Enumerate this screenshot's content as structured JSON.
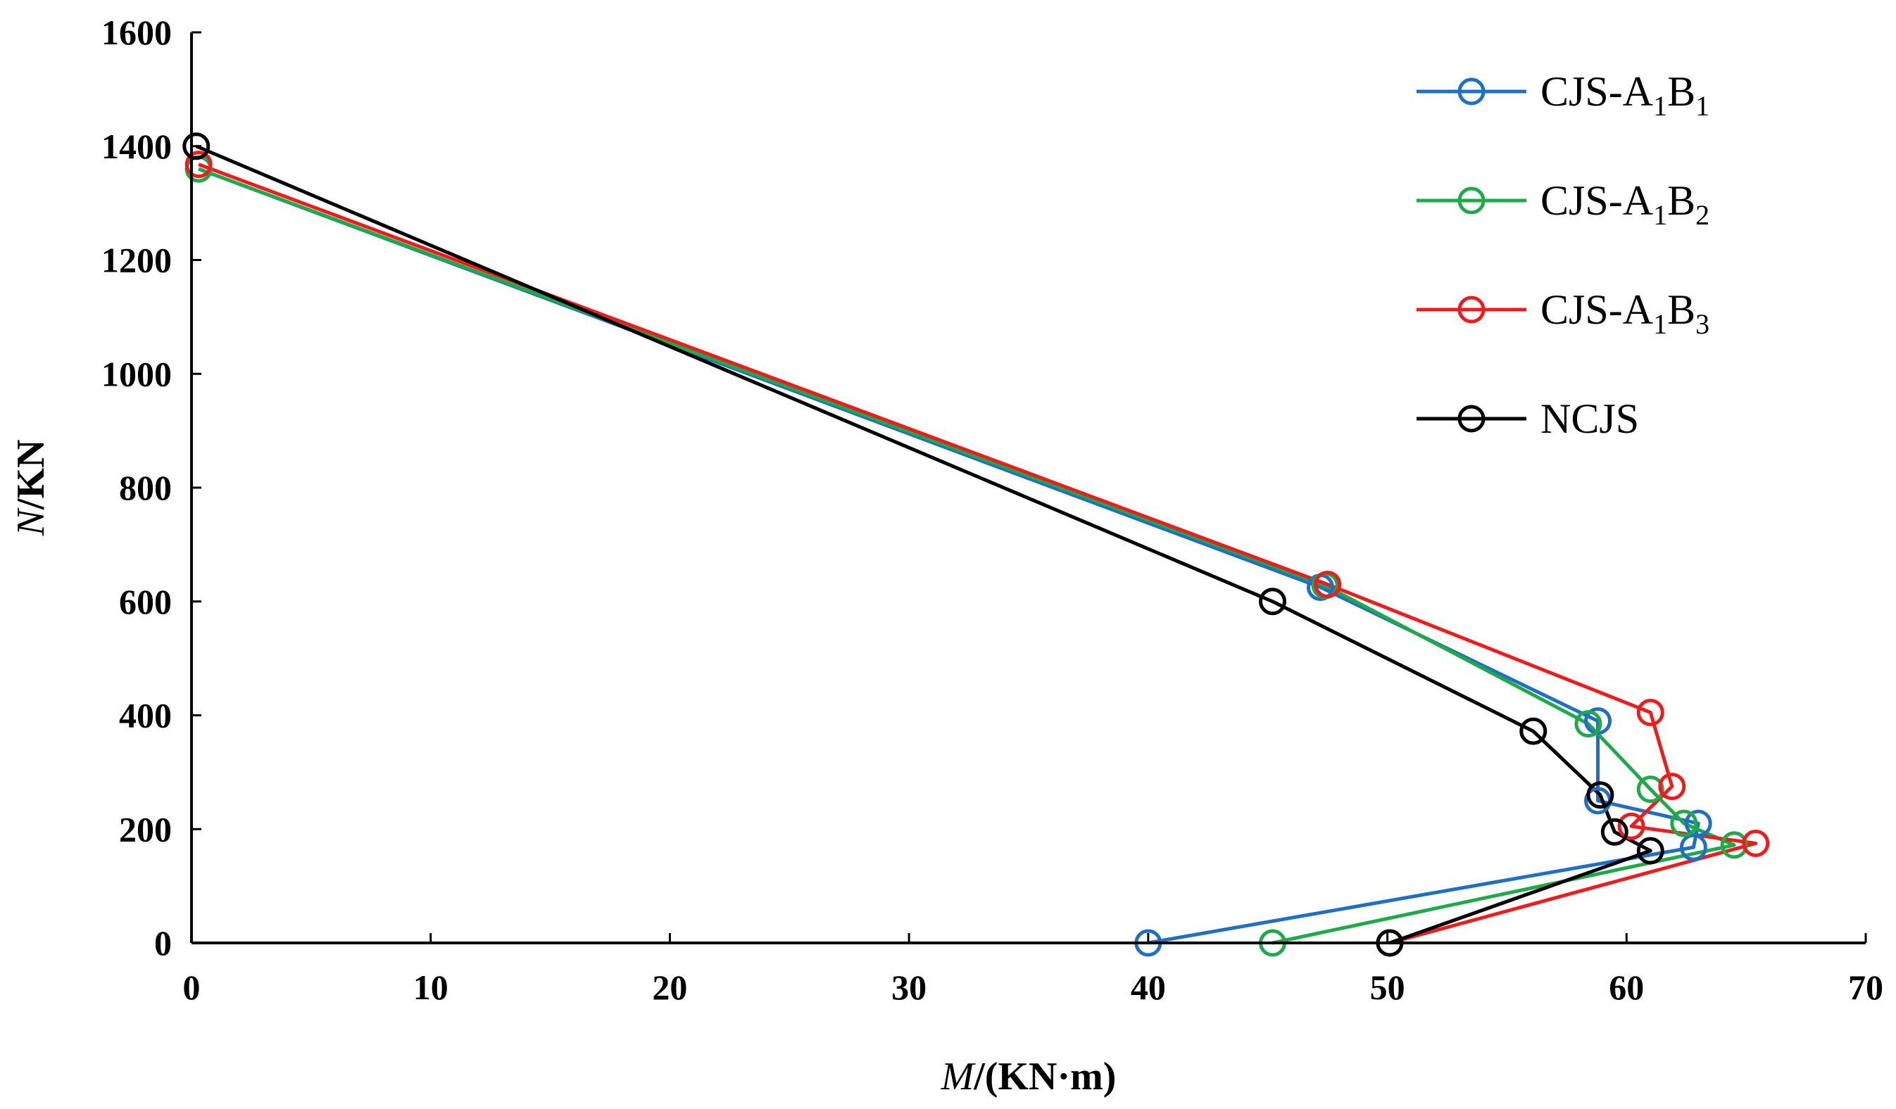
{
  "chart_data": {
    "type": "line",
    "title": "",
    "xlabel_italic": "M",
    "xlabel_rest": "/(KN·m)",
    "ylabel_italic": "N",
    "ylabel_rest": "/KN",
    "xlim": [
      0,
      70
    ],
    "ylim": [
      0,
      1600
    ],
    "xticks": [
      0,
      10,
      20,
      30,
      40,
      50,
      60,
      70
    ],
    "yticks": [
      0,
      200,
      400,
      600,
      800,
      1000,
      1200,
      1400,
      1600
    ],
    "grid": false,
    "legend_position": "top-right",
    "series": [
      {
        "name": "CJS-A1B1",
        "label_main": "CJS-A",
        "label_sub1": "1",
        "label_mid": "B",
        "label_sub2": "1",
        "color": "#1f6fc5",
        "points": [
          [
            0.3,
            1360
          ],
          [
            47.2,
            625
          ],
          [
            58.8,
            390
          ],
          [
            58.8,
            250
          ],
          [
            63.0,
            210
          ],
          [
            62.8,
            168
          ],
          [
            40.0,
            0
          ]
        ]
      },
      {
        "name": "CJS-A1B2",
        "label_main": "CJS-A",
        "label_sub1": "1",
        "label_mid": "B",
        "label_sub2": "2",
        "color": "#1faa4a",
        "points": [
          [
            0.3,
            1360
          ],
          [
            47.4,
            628
          ],
          [
            58.4,
            385
          ],
          [
            61.0,
            270
          ],
          [
            62.4,
            210
          ],
          [
            64.5,
            172
          ],
          [
            45.2,
            0
          ]
        ]
      },
      {
        "name": "CJS-A1B3",
        "label_main": "CJS-A",
        "label_sub1": "1",
        "label_mid": "B",
        "label_sub2": "3",
        "color": "#ee1c1c",
        "points": [
          [
            0.3,
            1368
          ],
          [
            47.5,
            630
          ],
          [
            61.0,
            405
          ],
          [
            61.9,
            275
          ],
          [
            60.2,
            205
          ],
          [
            65.4,
            175
          ],
          [
            50.1,
            0
          ]
        ]
      },
      {
        "name": "NCJS",
        "label_main": "NCJS",
        "label_sub1": "",
        "label_mid": "",
        "label_sub2": "",
        "color": "#000000",
        "points": [
          [
            0.2,
            1400
          ],
          [
            45.2,
            600
          ],
          [
            56.1,
            372
          ],
          [
            58.9,
            260
          ],
          [
            59.5,
            195
          ],
          [
            61.0,
            162
          ],
          [
            50.1,
            0
          ]
        ]
      }
    ]
  }
}
